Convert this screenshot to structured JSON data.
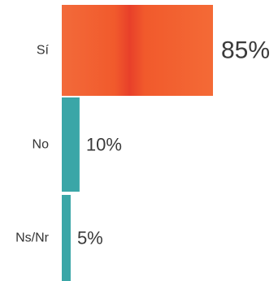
{
  "chart_data": {
    "type": "bar",
    "orientation": "horizontal",
    "categories": [
      "Sí",
      "No",
      "Ns/Nr"
    ],
    "values": [
      85,
      10,
      5
    ],
    "value_labels": [
      "85%",
      "10%",
      "5%"
    ],
    "unit": "%",
    "xlim": [
      0,
      85
    ],
    "colors": [
      "#f15a2c",
      "#3aa6a7",
      "#3aa6a7"
    ],
    "title": "",
    "xlabel": "",
    "ylabel": "",
    "grid": false,
    "legend": "none"
  }
}
